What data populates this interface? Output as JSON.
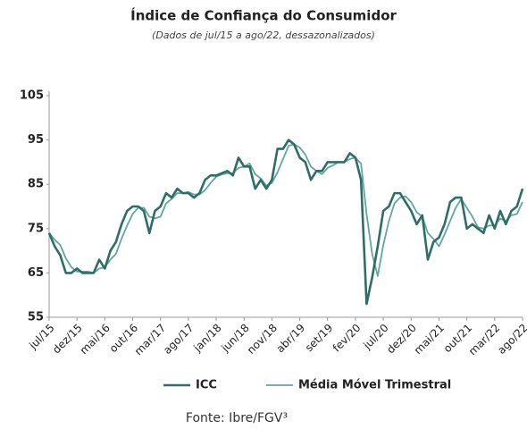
{
  "chart_data": {
    "type": "line",
    "title": "Índice de Confiança do Consumidor",
    "subtitle": "(Dados de jul/15 a ago/22, dessazonalizados)",
    "source": "Fonte: Ibre/FGV³",
    "categories": [
      "jul/15",
      null,
      null,
      null,
      null,
      "dez/15",
      null,
      null,
      null,
      null,
      "mai/16",
      null,
      null,
      null,
      null,
      "out/16",
      null,
      null,
      null,
      null,
      "mar/17",
      null,
      null,
      null,
      null,
      "ago/17",
      null,
      null,
      null,
      null,
      "jan/18",
      null,
      null,
      null,
      null,
      "jun/18",
      null,
      null,
      null,
      null,
      "nov/18",
      null,
      null,
      null,
      null,
      "abr/19",
      null,
      null,
      null,
      null,
      "set/19",
      null,
      null,
      null,
      null,
      "fev/20",
      null,
      null,
      null,
      null,
      "jul/20",
      null,
      null,
      null,
      null,
      "dez/20",
      null,
      null,
      null,
      null,
      "mai/21",
      null,
      null,
      null,
      null,
      "out/21",
      null,
      null,
      null,
      null,
      "mar/22",
      null,
      null,
      null,
      null,
      "ago/22"
    ],
    "series": [
      {
        "name": "ICC",
        "color": "#2e6d68",
        "values": [
          74,
          71,
          69,
          65,
          65,
          66,
          65,
          65,
          65,
          68,
          66,
          70,
          72,
          76,
          79,
          80,
          80,
          79,
          74,
          79,
          80,
          83,
          82,
          84,
          83,
          83,
          82,
          83,
          86,
          87,
          87,
          87.5,
          88,
          87,
          91,
          89,
          89,
          84,
          86,
          84,
          86,
          93,
          93,
          95,
          94,
          91,
          90,
          86,
          88,
          88,
          90,
          90,
          90,
          90,
          92,
          91,
          86,
          58,
          64,
          71,
          79,
          80,
          83,
          83,
          81,
          79,
          76,
          78,
          68,
          72,
          73,
          76,
          81,
          82,
          82,
          75,
          76,
          75,
          74,
          78,
          75,
          79,
          76,
          79,
          80,
          84
        ]
      },
      {
        "name": "Média Móvel Trimestral",
        "color": "#5fa8a0",
        "values": [
          74,
          72.5,
          71.3,
          68.3,
          66.3,
          65.3,
          65.3,
          65.3,
          65,
          66,
          66.3,
          68,
          69.3,
          72.7,
          75.7,
          78.3,
          79.7,
          79.7,
          77.7,
          77.3,
          77.7,
          80.7,
          81.7,
          83,
          83,
          83.3,
          82.7,
          82.7,
          83.7,
          85.3,
          86.7,
          87.2,
          87.5,
          87.5,
          88.7,
          89,
          89.7,
          87.3,
          86.3,
          84.7,
          85.3,
          87.7,
          90.7,
          93.7,
          94,
          93.3,
          91.7,
          89,
          88,
          87.3,
          88.7,
          89.3,
          90,
          90,
          90.7,
          91,
          89.7,
          78.3,
          69.3,
          64.3,
          71.3,
          76.7,
          80.7,
          82,
          82.3,
          81,
          78.7,
          77.7,
          74,
          72.7,
          71,
          73.7,
          76.7,
          79.7,
          81.7,
          79.7,
          77.7,
          75.3,
          75,
          75.7,
          75.7,
          77.3,
          76.7,
          78,
          78.3,
          81
        ]
      }
    ],
    "ylim": [
      55,
      105
    ],
    "yticks": [
      55,
      65,
      75,
      85,
      95,
      105
    ],
    "grid": false
  }
}
